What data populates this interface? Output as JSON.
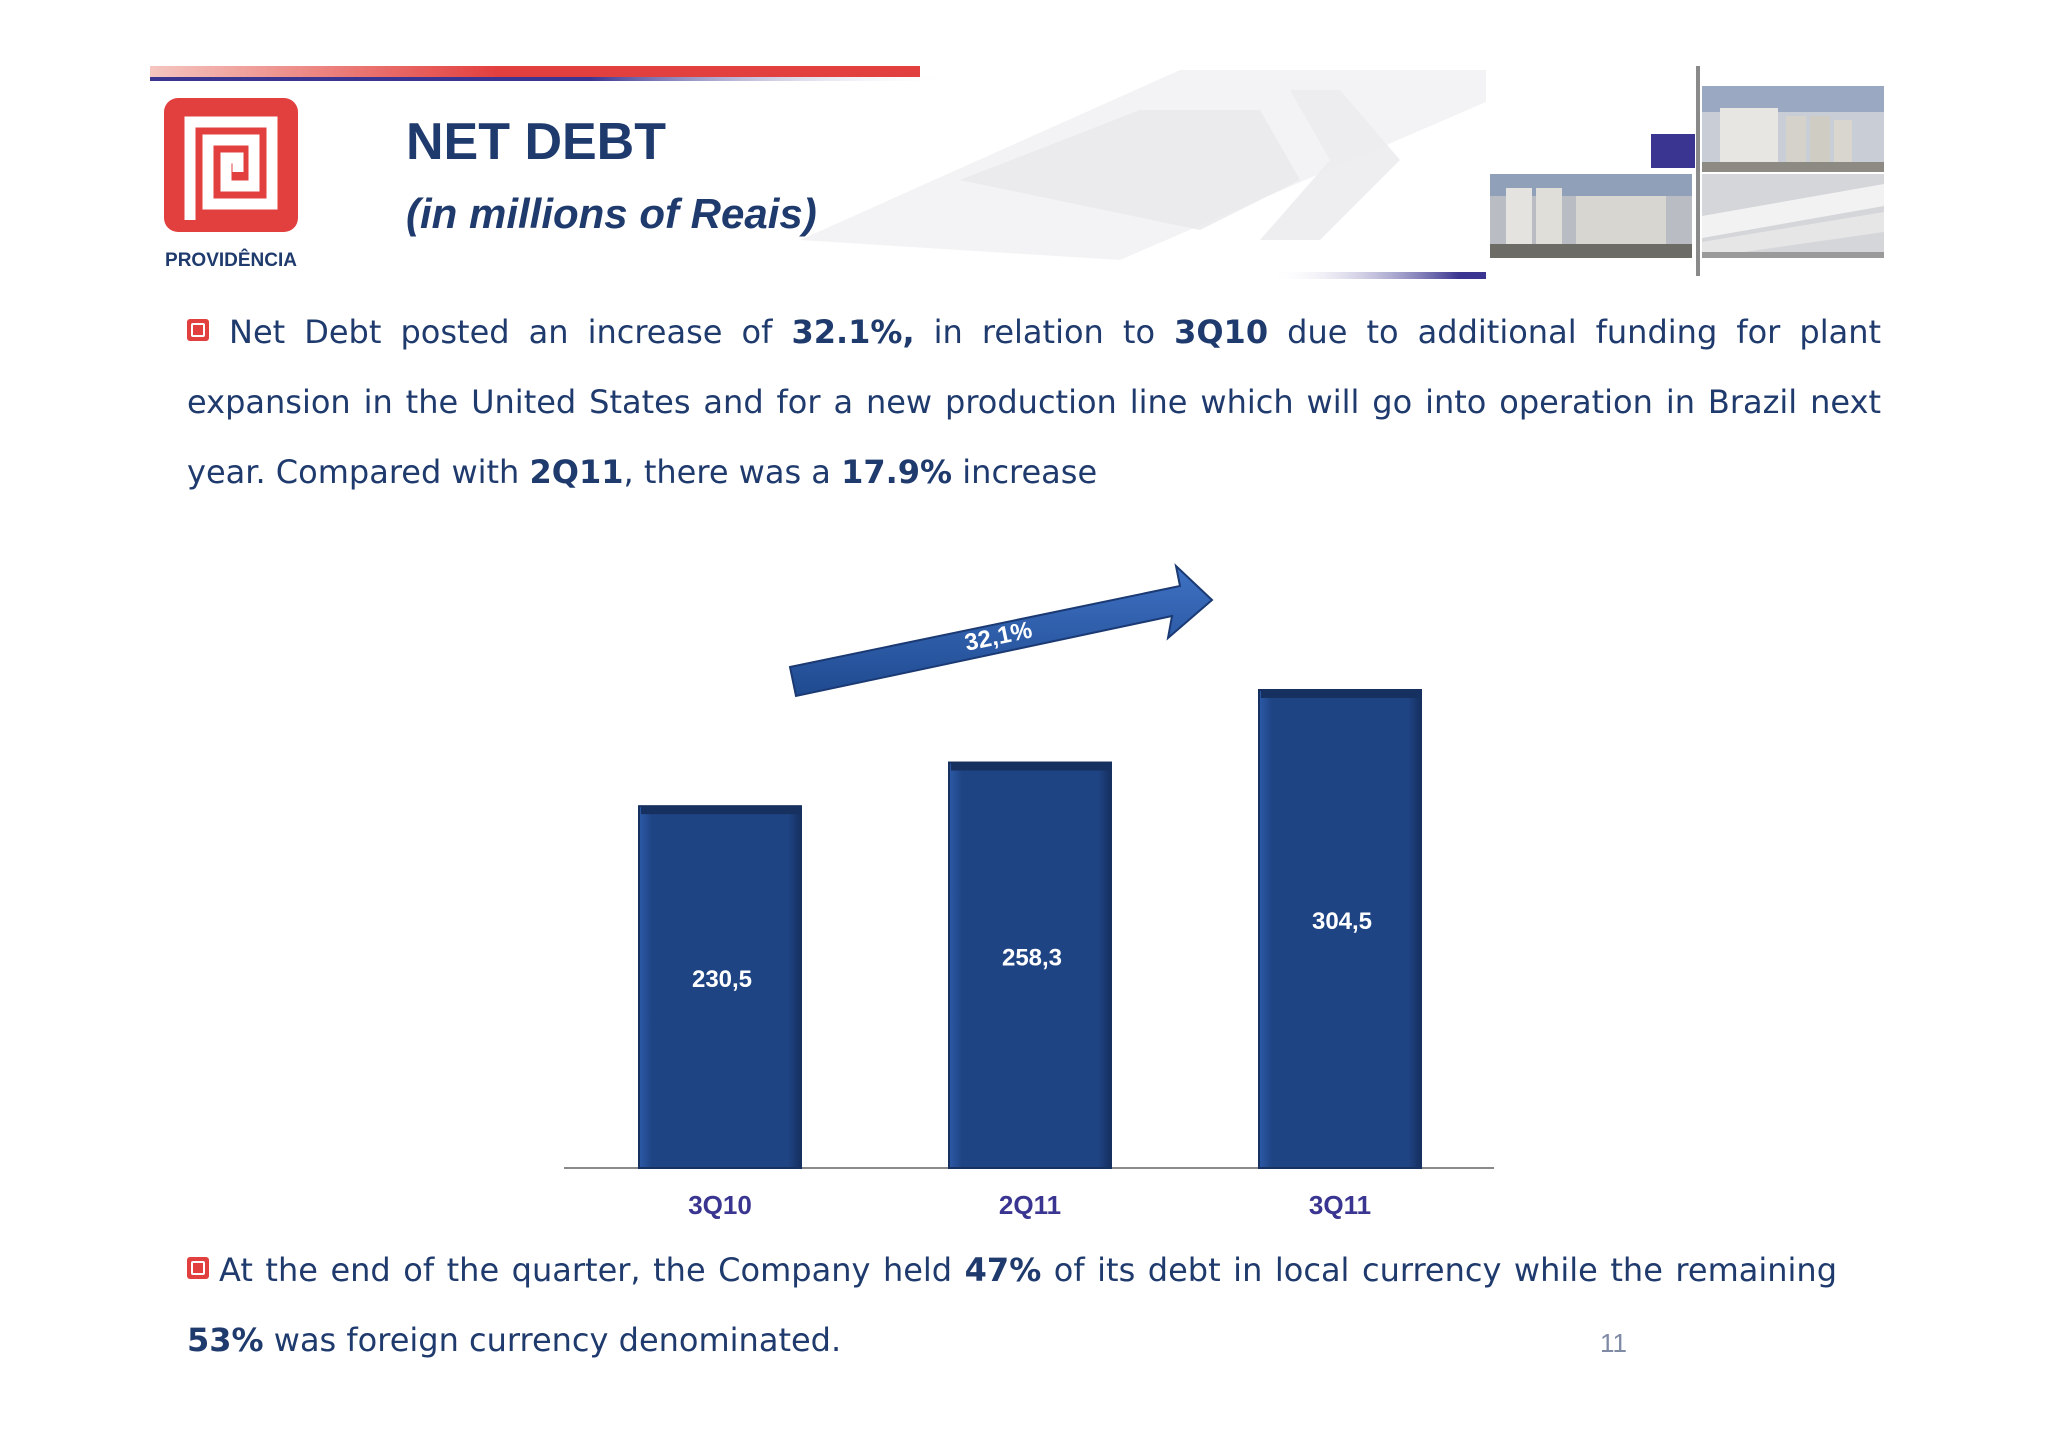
{
  "header": {
    "title": "NET DEBT",
    "subtitle": "(in millions of Reais)",
    "logo_text": "PROVIDÊNCIA"
  },
  "paragraph1": {
    "t1": "Net Debt posted an increase of ",
    "b1": "32.1%,",
    "t2": " in relation to ",
    "b2": "3Q10",
    "t3": " due to additional funding for plant expansion in the United States and for a new production line which will go into operation in Brazil next year. Compared with ",
    "b3": "2Q11",
    "t4": ", there was a ",
    "b4": "17.9%",
    "t5": " increase"
  },
  "paragraph2": {
    "t1": "At the end of the quarter, the Company held ",
    "b1": "47%",
    "t2": " of its debt in local currency while the remaining ",
    "b2": "53%",
    "t3": " was  foreign currency denominated."
  },
  "page_number": "11",
  "colors": {
    "brand_red": "#e2403f",
    "navy": "#1f3a6d",
    "bar_blue": "#1f4484",
    "arrow_blue": "#2a5aa8",
    "tick_purple": "#3a3590"
  },
  "chart_data": {
    "type": "bar",
    "categories": [
      "3Q10",
      "2Q11",
      "3Q11"
    ],
    "values": [
      230.5,
      258.3,
      304.5
    ],
    "value_labels": [
      "230,5",
      "258,3",
      "304,5"
    ],
    "growth_arrow_label": "32,1%",
    "title": "",
    "xlabel": "",
    "ylabel": "",
    "ylim": [
      0,
      304.5
    ],
    "grid": false
  }
}
